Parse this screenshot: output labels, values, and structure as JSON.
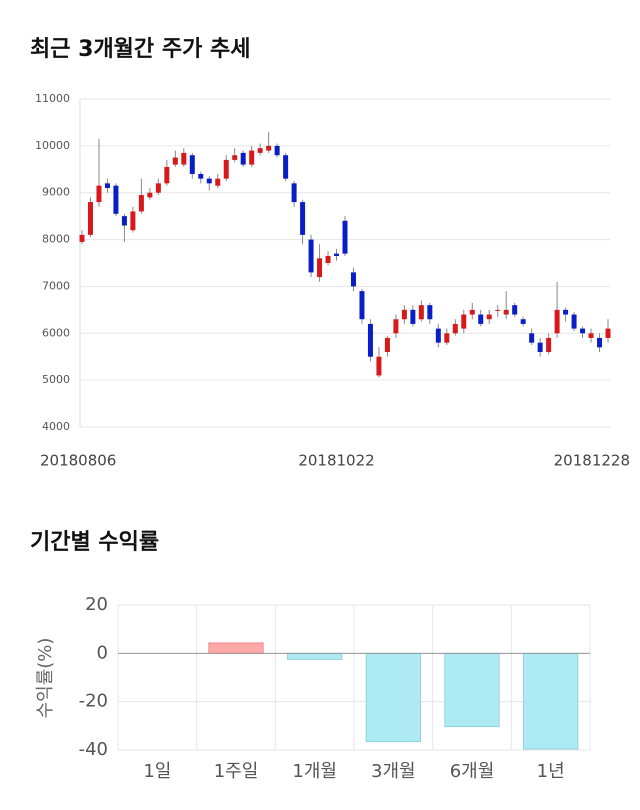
{
  "chart_data": [
    {
      "type": "candlestick",
      "title": "최근 3개월간 주가 추세",
      "categories": [
        "20180806",
        null,
        null,
        null,
        null,
        null,
        null,
        null,
        null,
        null,
        null,
        null,
        null,
        null,
        null,
        null,
        null,
        null,
        null,
        null,
        null,
        null,
        null,
        null,
        null,
        null,
        null,
        null,
        null,
        null,
        "20181022",
        null,
        null,
        null,
        null,
        null,
        null,
        null,
        null,
        null,
        null,
        null,
        null,
        null,
        null,
        null,
        null,
        null,
        null,
        null,
        null,
        null,
        null,
        null,
        null,
        null,
        null,
        null,
        null,
        null,
        null,
        null,
        "20181228"
      ],
      "open": [
        7950,
        8100,
        8800,
        9200,
        9150,
        8500,
        8200,
        8600,
        8900,
        9000,
        9200,
        9600,
        9600,
        9800,
        9400,
        9300,
        9150,
        9300,
        9700,
        9850,
        9600,
        9850,
        9900,
        10000,
        9800,
        9200,
        8800,
        8000,
        7200,
        7500,
        7700,
        8400,
        7300,
        6900,
        6200,
        5100,
        5600,
        6000,
        6300,
        6500,
        6300,
        6600,
        6100,
        5800,
        6000,
        6100,
        6400,
        6400,
        6300,
        6500,
        6400,
        6600,
        6300,
        6000,
        5800,
        5600,
        6000,
        6500,
        6400,
        6100,
        5900,
        5900,
        5900
      ],
      "high": [
        8200,
        8900,
        10150,
        9300,
        9200,
        8550,
        8700,
        9300,
        9100,
        9300,
        9700,
        9900,
        9950,
        9850,
        9450,
        9350,
        9400,
        9800,
        9950,
        9900,
        10000,
        10050,
        10300,
        10050,
        9850,
        9250,
        8850,
        8100,
        7900,
        7750,
        7800,
        8500,
        7400,
        6950,
        6300,
        5700,
        5950,
        6400,
        6600,
        6600,
        6700,
        6650,
        6200,
        6100,
        6300,
        6500,
        6650,
        6500,
        6500,
        6600,
        6900,
        6650,
        6350,
        6100,
        5900,
        6000,
        7100,
        6550,
        6450,
        6150,
        6100,
        6000,
        6300
      ],
      "low": [
        7900,
        8050,
        8700,
        9000,
        8500,
        7950,
        8150,
        8550,
        8850,
        8950,
        9150,
        9550,
        9550,
        9300,
        9200,
        9050,
        9100,
        9250,
        9650,
        9550,
        9550,
        9800,
        9850,
        9750,
        9250,
        8700,
        7900,
        7200,
        7100,
        7450,
        7550,
        7650,
        6900,
        6200,
        5400,
        5050,
        5500,
        5900,
        6200,
        6150,
        6250,
        6200,
        5700,
        5750,
        5950,
        6000,
        6300,
        6150,
        6200,
        6350,
        6300,
        6350,
        6150,
        5750,
        5500,
        5550,
        5900,
        6250,
        6050,
        5900,
        5800,
        5600,
        5800
      ],
      "close": [
        8100,
        8800,
        9150,
        9100,
        8550,
        8300,
        8600,
        8950,
        9000,
        9200,
        9550,
        9750,
        9850,
        9400,
        9300,
        9200,
        9300,
        9700,
        9800,
        9600,
        9900,
        9950,
        10000,
        9800,
        9300,
        8800,
        8100,
        7300,
        7600,
        7650,
        7650,
        7700,
        7000,
        6300,
        5500,
        5500,
        5900,
        6300,
        6500,
        6200,
        6600,
        6300,
        5800,
        6000,
        6200,
        6400,
        6500,
        6200,
        6400,
        6500,
        6500,
        6400,
        6200,
        5800,
        5600,
        5900,
        6500,
        6400,
        6100,
        6000,
        6000,
        5700,
        6100
      ],
      "up_color": "#d7191c",
      "down_color": "#0a1ec8",
      "ylim": [
        4000,
        11000
      ],
      "yticks": [
        4000,
        5000,
        6000,
        7000,
        8000,
        9000,
        10000,
        11000
      ],
      "grid": true
    },
    {
      "type": "bar",
      "title": "기간별 수익률",
      "ylabel": "수익률(%)",
      "categories": [
        "1일",
        "1주일",
        "1개월",
        "3개월",
        "6개월",
        "1년"
      ],
      "values": [
        0,
        4.3,
        -2.5,
        -36.5,
        -30.3,
        -39.6
      ],
      "positive_color": "#ffa8a8",
      "negative_color": "#aeeaf4",
      "ylim": [
        -40,
        20
      ],
      "yticks": [
        20,
        0,
        -20,
        -40
      ],
      "grid": true
    }
  ]
}
